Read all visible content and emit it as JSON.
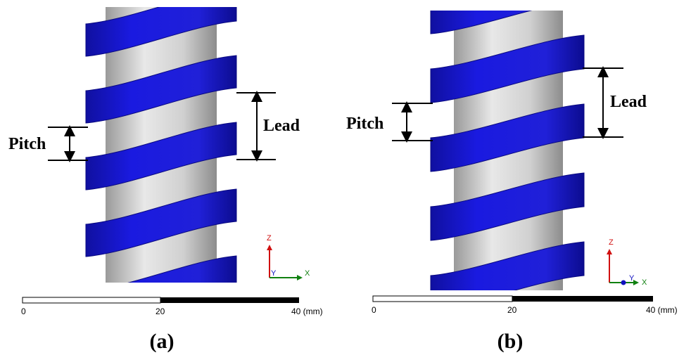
{
  "panels": [
    {
      "caption": "(a)",
      "pitch_label": "Pitch",
      "lead_label": "Lead",
      "axis_z": "Z",
      "axis_y": "Y",
      "axis_x": "X",
      "scale_labels": [
        "0",
        "20",
        "40 (mm)"
      ]
    },
    {
      "caption": "(b)",
      "pitch_label": "Pitch",
      "lead_label": "Lead",
      "axis_z": "Z",
      "axis_y": "Y",
      "axis_x": "X",
      "scale_labels": [
        "0",
        "20",
        "40 (mm)"
      ]
    }
  ]
}
